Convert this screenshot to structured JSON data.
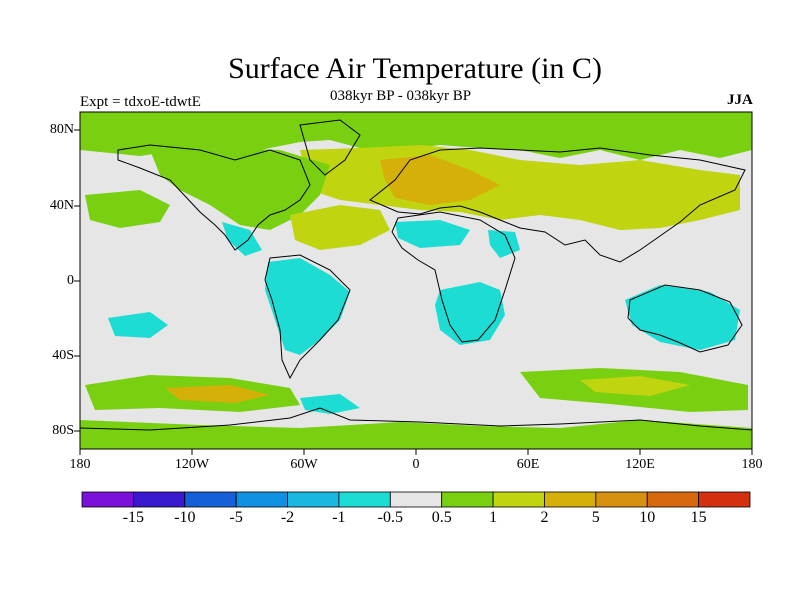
{
  "map": {
    "title": "Surface Air Temperature (in C)",
    "subtitle": "038kyr BP - 038kyr BP",
    "left_label": "Expt = tdxoE-tdwtE",
    "right_label": "JJA",
    "lat_ticks": [
      "80N",
      "40N",
      "0",
      "40S",
      "80S"
    ],
    "lon_ticks": [
      "180",
      "120W",
      "60W",
      "0",
      "60E",
      "120E",
      "180"
    ]
  },
  "colorbar": {
    "colors": [
      "#7b10d8",
      "#3a18d0",
      "#1560d8",
      "#1090e0",
      "#18b8e0",
      "#1cdcd4",
      "#e6e6e6",
      "#78d010",
      "#c0d410",
      "#d4b008",
      "#d89010",
      "#d86810",
      "#d43010"
    ],
    "labels": [
      "-15",
      "-10",
      "-5",
      "-2",
      "-1",
      "-0.5",
      "0.5",
      "1",
      "2",
      "5",
      "10",
      "15"
    ]
  },
  "field_colors": {
    "neutral": "#e6e6e6",
    "warm1": "#78d010",
    "warm2": "#c0d410",
    "warm3": "#d4b008",
    "cool1": "#1cdcd4",
    "cool2": "#18b8e0",
    "coast": "#000000"
  }
}
